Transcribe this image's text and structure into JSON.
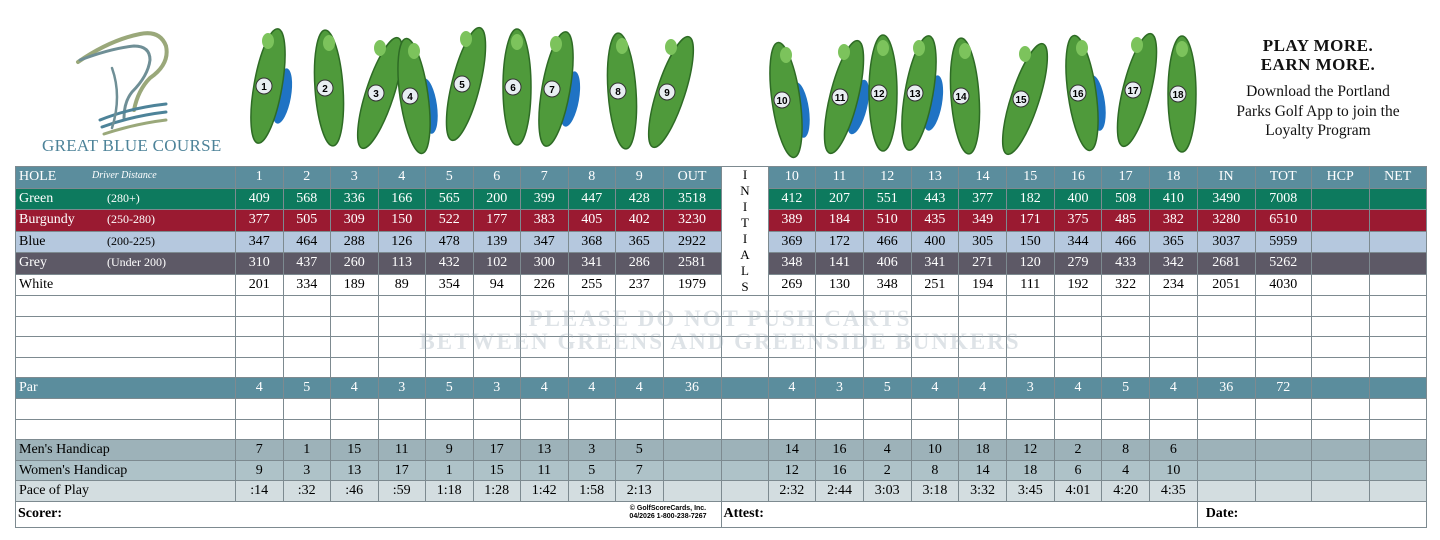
{
  "header": {
    "course_name": "GREAT BLUE COURSE",
    "promo_headline": [
      "PLAY MORE.",
      "EARN MORE."
    ],
    "promo_body": [
      "Download the Portland",
      "Parks Golf App to join the",
      "Loyalty Program"
    ]
  },
  "table": {
    "hole_label": "HOLE",
    "hole_sublabel": "Driver Distance",
    "front_holes": [
      1,
      2,
      3,
      4,
      5,
      6,
      7,
      8,
      9
    ],
    "out_label": "OUT",
    "initials_label": "INITIALS",
    "back_holes": [
      10,
      11,
      12,
      13,
      14,
      15,
      16,
      17,
      18
    ],
    "in_label": "IN",
    "tot_label": "TOT",
    "hcp_label": "HCP",
    "net_label": "NET",
    "tees": [
      {
        "name": "Green",
        "sub": "(280+)",
        "color": "#0d7a5e",
        "text_color": "#ffffff",
        "front": [
          409,
          568,
          336,
          166,
          565,
          200,
          399,
          447,
          428
        ],
        "out": 3518,
        "back": [
          412,
          207,
          551,
          443,
          377,
          182,
          400,
          508,
          410
        ],
        "in": 3490,
        "tot": 7008
      },
      {
        "name": "Burgundy",
        "sub": "(250-280)",
        "color": "#9a1a31",
        "text_color": "#ffffff",
        "front": [
          377,
          505,
          309,
          150,
          522,
          177,
          383,
          405,
          402
        ],
        "out": 3230,
        "back": [
          389,
          184,
          510,
          435,
          349,
          171,
          375,
          485,
          382
        ],
        "in": 3280,
        "tot": 6510
      },
      {
        "name": "Blue",
        "sub": "(200-225)",
        "color": "#b5c8de",
        "text_color": "#000000",
        "front": [
          347,
          464,
          288,
          126,
          478,
          139,
          347,
          368,
          365
        ],
        "out": 2922,
        "back": [
          369,
          172,
          466,
          400,
          305,
          150,
          344,
          466,
          365
        ],
        "in": 3037,
        "tot": 5959
      },
      {
        "name": "Grey",
        "sub": "(Under 200)",
        "color": "#5d5966",
        "text_color": "#ffffff",
        "front": [
          310,
          437,
          260,
          113,
          432,
          102,
          300,
          341,
          286
        ],
        "out": 2581,
        "back": [
          348,
          141,
          406,
          341,
          271,
          120,
          279,
          433,
          342
        ],
        "in": 2681,
        "tot": 5262
      },
      {
        "name": "White",
        "color": "#ffffff",
        "text_color": "#000000",
        "front": [
          201,
          334,
          189,
          89,
          354,
          94,
          226,
          255,
          237
        ],
        "out": 1979,
        "back": [
          269,
          130,
          348,
          251,
          194,
          111,
          192,
          322,
          234
        ],
        "in": 2051,
        "tot": 4030
      }
    ],
    "par": {
      "name": "Par",
      "color": "#5b8d9d",
      "text_color": "#ffffff",
      "front": [
        4,
        5,
        4,
        3,
        5,
        3,
        4,
        4,
        4
      ],
      "out": 36,
      "back": [
        4,
        3,
        5,
        4,
        4,
        3,
        4,
        5,
        4
      ],
      "in": 36,
      "tot": 72
    },
    "handicaps": [
      {
        "name": "Men's Handicap",
        "color": "#9db2b9",
        "text_color": "#000000",
        "front": [
          7,
          1,
          15,
          11,
          9,
          17,
          13,
          3,
          5
        ],
        "back": [
          14,
          16,
          4,
          10,
          18,
          12,
          2,
          8,
          6
        ]
      },
      {
        "name": "Women's Handicap",
        "color": "#aec2c8",
        "text_color": "#000000",
        "front": [
          9,
          3,
          13,
          17,
          1,
          15,
          11,
          5,
          7
        ],
        "back": [
          12,
          16,
          2,
          8,
          14,
          18,
          6,
          4,
          10
        ]
      },
      {
        "name": "Pace of Play",
        "color": "#d3dde0",
        "text_color": "#000000",
        "front": [
          ":14",
          ":32",
          ":46",
          ":59",
          "1:18",
          "1:28",
          "1:42",
          "1:58",
          "2:13"
        ],
        "back": [
          "2:32",
          "2:44",
          "3:03",
          "3:18",
          "3:32",
          "3:45",
          "4:01",
          "4:20",
          "4:35"
        ]
      }
    ],
    "watermark": [
      "PLEASE DO NOT PUSH CARTS",
      "BETWEEN GREENS AND GREENSIDE BUNKERS"
    ],
    "footer": {
      "scorer": "Scorer:",
      "copyright": "© GolfScoreCards, Inc.",
      "print_info": "04/2026 1-800-238-7267",
      "attest": "Attest:",
      "date": "Date:"
    }
  }
}
